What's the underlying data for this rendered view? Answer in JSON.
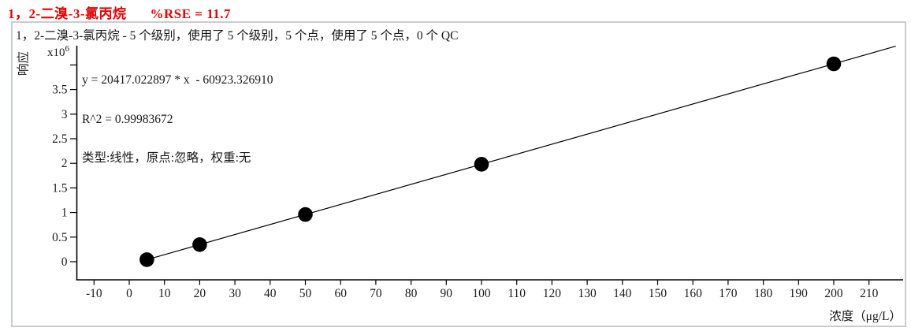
{
  "header": {
    "compound": "1，2-二溴-3-氯丙烷",
    "rse_label": "%RSE = 11.7",
    "title_color": "#e80000"
  },
  "panel": {
    "border_color": "#c8cdd2"
  },
  "chart_data": {
    "type": "scatter",
    "subtitle": "1，2-二溴-3-氯丙烷 - 5 个级别，使用了 5 个级别，5 个点，使用了 5 个点，0 个 QC",
    "annotation_lines": [
      "y = 20417.022897 * x  - 60923.326910",
      "R^2 = 0.99983672",
      "类型:线性，原点:忽略，权重:无"
    ],
    "fit": {
      "slope": 20417.022897,
      "intercept": -60923.32691,
      "r_squared": 0.99983672,
      "fit_type": "线性",
      "origin": "忽略",
      "weight": "无"
    },
    "xlabel": "浓度（μg/L）",
    "ylabel": "响应",
    "y_multiplier_base": "x10",
    "y_multiplier_exp": "6",
    "x_ticks": [
      -10,
      0,
      10,
      20,
      30,
      40,
      50,
      60,
      70,
      80,
      90,
      100,
      110,
      120,
      130,
      140,
      150,
      160,
      170,
      180,
      190,
      200,
      210
    ],
    "y_ticks_labeled": [
      0,
      0.5,
      1,
      1.5,
      2,
      2.5,
      3,
      3.5
    ],
    "y_ticks_unlabeled": [
      4
    ],
    "xlim": [
      -15,
      219.5
    ],
    "ylim": [
      -370000,
      4390000
    ],
    "points": [
      {
        "x": 5,
        "y": 41162
      },
      {
        "x": 20,
        "y": 347417
      },
      {
        "x": 50,
        "y": 959928
      },
      {
        "x": 100,
        "y": 1980779
      },
      {
        "x": 200,
        "y": 4022481
      }
    ],
    "fit_line_x_range": [
      5,
      217.6
    ],
    "grid": false,
    "colors": {
      "marker": "#000000",
      "line": "#000000",
      "axis": "#000000",
      "text": "#1a1a1a"
    }
  }
}
